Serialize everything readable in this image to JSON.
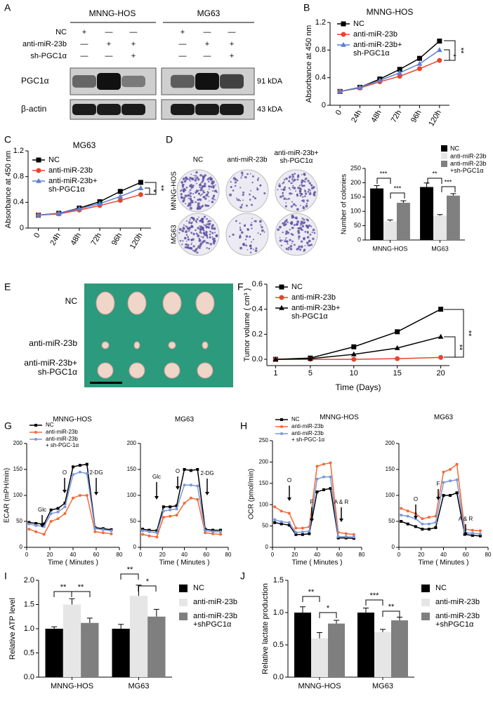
{
  "panel_labels": [
    "A",
    "B",
    "C",
    "D",
    "E",
    "F",
    "G",
    "H",
    "I",
    "J"
  ],
  "blot": {
    "groups": [
      "MNNG-HOS",
      "MG63"
    ],
    "rows": [
      "NC",
      "anti-miR-23b",
      "sh-PGC1α"
    ],
    "signs": [
      [
        "+",
        "—",
        "—",
        "+",
        "—",
        "—"
      ],
      [
        "—",
        "+",
        "+",
        "—",
        "+",
        "+"
      ],
      [
        "—",
        "—",
        "+",
        "—",
        "—",
        "+"
      ]
    ],
    "bands": [
      "PGC1α",
      "β-actin"
    ],
    "sizes": [
      "91 kDA",
      "43 kDA"
    ]
  },
  "colony": {
    "columns": [
      "NC",
      "anti-miR-23b",
      "anti-miR-23b+\nsh-PGC1α"
    ],
    "rows": [
      "MNNG-HOS",
      "MG63"
    ]
  },
  "tumor": {
    "rows": [
      "NC",
      "anti-miR-23b",
      "anti-miR-23b+\nsh-PGC1α"
    ]
  },
  "chart_data": [
    {
      "type": "line",
      "title": "MNNG-HOS",
      "y_label": "Absorbance at 450 nm",
      "categories": [
        "0",
        "24h",
        "48h",
        "72h",
        "96h",
        "120h"
      ],
      "ylim": [
        0,
        1.2
      ],
      "yticks": [
        0,
        0.4,
        0.8,
        1.2
      ],
      "series": [
        {
          "name": "NC",
          "color": "#000000",
          "marker": "square",
          "values": [
            0.2,
            0.26,
            0.38,
            0.52,
            0.68,
            0.93
          ]
        },
        {
          "name": "anti-miR-23b",
          "color": "#e8452c",
          "marker": "circle",
          "values": [
            0.2,
            0.25,
            0.34,
            0.42,
            0.53,
            0.65
          ]
        },
        {
          "name": "anti-miR-23b+\nsh-PGC1α",
          "color": "#5b7fd6",
          "marker": "triangle",
          "values": [
            0.2,
            0.26,
            0.36,
            0.47,
            0.6,
            0.8
          ]
        }
      ],
      "annotations": [
        "**",
        "*"
      ]
    },
    {
      "type": "line",
      "title": "MG63",
      "y_label": "Absorbance at 450 nm",
      "categories": [
        "0",
        "24h",
        "48h",
        "72h",
        "96h",
        "120h"
      ],
      "ylim": [
        0,
        1.2
      ],
      "yticks": [
        0,
        0.4,
        0.8,
        1.2
      ],
      "series": [
        {
          "name": "NC",
          "color": "#000000",
          "marker": "square",
          "values": [
            0.2,
            0.23,
            0.31,
            0.41,
            0.57,
            0.71
          ]
        },
        {
          "name": "anti-miR-23b",
          "color": "#e8452c",
          "marker": "circle",
          "values": [
            0.2,
            0.22,
            0.28,
            0.35,
            0.43,
            0.52
          ]
        },
        {
          "name": "anti-miR-23b+\nsh-PGC1α",
          "color": "#5b7fd6",
          "marker": "triangle",
          "values": [
            0.2,
            0.23,
            0.3,
            0.38,
            0.49,
            0.62
          ]
        }
      ],
      "annotations": [
        "**",
        "*"
      ]
    },
    {
      "type": "bar",
      "y_label": "Number of colonies",
      "categories": [
        "MNNG-HOS",
        "MG63"
      ],
      "ylim": [
        0,
        250
      ],
      "yticks": [
        0,
        50,
        100,
        150,
        200,
        250
      ],
      "series": [
        {
          "name": "NC",
          "color": "#000000",
          "values": [
            180,
            185
          ],
          "errors": [
            10,
            14
          ]
        },
        {
          "name": "anti-miR-23b",
          "color": "#e6e6e6",
          "values": [
            65,
            85
          ],
          "errors": [
            5,
            4
          ]
        },
        {
          "name": "anti-miR-23b\n+sh-PGC1α",
          "color": "#808080",
          "values": [
            130,
            155
          ],
          "errors": [
            7,
            7
          ]
        }
      ],
      "annotations": [
        "***",
        "***",
        "**",
        "***"
      ]
    },
    {
      "type": "line",
      "y_label": "Tumor volume ( cm³ )",
      "x_label": "Time (Days)",
      "x": [
        1,
        5,
        10,
        15,
        20
      ],
      "xlim": [
        0,
        21
      ],
      "xticks": [
        1,
        5,
        10,
        15,
        20
      ],
      "ylim": [
        -0.05,
        0.6
      ],
      "yticks": [
        {
          "value": 0,
          "label": "0.0"
        },
        0.2,
        0.4,
        0.6
      ],
      "series": [
        {
          "name": "NC",
          "color": "#000000",
          "marker": "square",
          "values": [
            0,
            0.01,
            0.1,
            0.22,
            0.4
          ]
        },
        {
          "name": "anti-miR-23b",
          "color": "#e8452c",
          "marker": "circle",
          "values": [
            0,
            0,
            0,
            0.005,
            0.015
          ]
        },
        {
          "name": "anti-miR-23b+\nsh-PGC1α",
          "color": "#000000",
          "marker": "triangle",
          "values": [
            0,
            0.005,
            0.04,
            0.09,
            0.18
          ]
        }
      ],
      "annotations": [
        "**",
        "**"
      ]
    },
    {
      "type": "line",
      "title": "MNNG-HOS",
      "y_label": "ECAR (mPH/min)",
      "x_label": "Time ( Minutes )",
      "x": [
        2,
        8,
        15,
        21,
        27,
        33,
        40,
        46,
        52,
        59,
        66,
        73
      ],
      "xlim": [
        0,
        80
      ],
      "xticks": [
        0,
        20,
        40,
        60,
        80
      ],
      "ylim": [
        0,
        200
      ],
      "yticks": [
        0,
        50,
        100,
        150,
        200
      ],
      "series": [
        {
          "name": "NC",
          "color": "#000000",
          "marker": "square",
          "values": [
            48,
            46,
            45,
            72,
            75,
            85,
            155,
            158,
            160,
            38,
            36,
            34
          ]
        },
        {
          "name": "anti-miR-23b",
          "color": "#f26b38",
          "marker": "circle",
          "values": [
            35,
            30,
            25,
            50,
            55,
            65,
            95,
            100,
            100,
            30,
            28,
            26
          ]
        },
        {
          "name": "anti-miR-23b\n+ sh-PGC-1α",
          "color": "#7b96dc",
          "marker": "circle",
          "values": [
            45,
            42,
            40,
            65,
            68,
            78,
            140,
            145,
            142,
            36,
            34,
            32
          ]
        }
      ],
      "annotations": [
        "Glc",
        "O",
        "2-DG"
      ]
    },
    {
      "type": "line",
      "title": "MG63",
      "x_label": "Time ( Minutes )",
      "x": [
        2,
        8,
        15,
        21,
        27,
        33,
        40,
        46,
        52,
        59,
        66,
        73
      ],
      "xlim": [
        0,
        80
      ],
      "xticks": [
        0,
        20,
        40,
        60,
        80
      ],
      "ylim": [
        0,
        200
      ],
      "yticks": [
        0,
        50,
        100,
        150,
        200
      ],
      "series": [
        {
          "color": "#000000",
          "marker": "square",
          "values": [
            35,
            33,
            32,
            78,
            78,
            80,
            150,
            148,
            150,
            35,
            33,
            33
          ]
        },
        {
          "color": "#f26b38",
          "marker": "circle",
          "values": [
            25,
            22,
            20,
            58,
            60,
            62,
            85,
            95,
            92,
            28,
            26,
            25
          ]
        },
        {
          "color": "#7b96dc",
          "marker": "circle",
          "values": [
            32,
            30,
            28,
            70,
            72,
            74,
            120,
            120,
            118,
            32,
            30,
            30
          ]
        }
      ],
      "annotations": [
        "Glc",
        "O",
        "2-DG"
      ]
    },
    {
      "type": "line",
      "title": "MNNG-HOS",
      "y_label": "OCR (pmol/min)",
      "x_label": "Time ( Minutes )",
      "x": [
        2,
        8,
        15,
        21,
        27,
        33,
        40,
        46,
        52,
        59,
        66,
        73
      ],
      "xlim": [
        0,
        80
      ],
      "xticks": [
        0,
        20,
        40,
        60,
        80
      ],
      "ylim": [
        0,
        250
      ],
      "yticks": [
        0,
        50,
        100,
        150,
        200,
        250
      ],
      "series": [
        {
          "name": "NC",
          "color": "#000000",
          "marker": "square",
          "values": [
            58,
            55,
            52,
            30,
            30,
            32,
            130,
            135,
            138,
            22,
            22,
            21
          ]
        },
        {
          "name": "anti-miR-23b",
          "color": "#f26b38",
          "marker": "circle",
          "values": [
            95,
            85,
            80,
            45,
            45,
            48,
            190,
            195,
            198,
            35,
            32,
            30
          ]
        },
        {
          "name": "anti-miR-23b\n+ sh-PGC-1α",
          "color": "#7b96dc",
          "marker": "circle",
          "values": [
            65,
            60,
            58,
            35,
            36,
            38,
            160,
            165,
            165,
            25,
            25,
            24
          ]
        }
      ],
      "annotations": [
        "O",
        "F",
        "A & R"
      ]
    },
    {
      "type": "line",
      "title": "MG63",
      "x_label": "Time ( Minutes )",
      "x": [
        2,
        8,
        15,
        21,
        27,
        33,
        40,
        46,
        52,
        59,
        66,
        73
      ],
      "xlim": [
        0,
        80
      ],
      "xticks": [
        0,
        20,
        40,
        60,
        80
      ],
      "ylim": [
        0,
        200
      ],
      "yticks": [
        0,
        50,
        100,
        150,
        200
      ],
      "series": [
        {
          "color": "#000000",
          "marker": "square",
          "values": [
            50,
            45,
            40,
            35,
            35,
            38,
            100,
            100,
            105,
            25,
            23,
            22
          ]
        },
        {
          "color": "#f26b38",
          "marker": "circle",
          "values": [
            75,
            70,
            65,
            55,
            58,
            60,
            145,
            150,
            160,
            35,
            33,
            32
          ]
        },
        {
          "color": "#7b96dc",
          "marker": "circle",
          "values": [
            62,
            60,
            55,
            45,
            45,
            48,
            125,
            128,
            130,
            28,
            27,
            26
          ]
        }
      ],
      "annotations": [
        "O",
        "F",
        "A & R"
      ]
    },
    {
      "type": "bar",
      "y_label": "Relative ATP level",
      "categories": [
        "MNNG-HOS",
        "MG63"
      ],
      "ylim": [
        0,
        2
      ],
      "yticks": [
        {
          "value": 0,
          "label": "0.0"
        },
        0.5,
        {
          "value": 1,
          "label": "1.0"
        },
        1.5,
        {
          "value": 2,
          "label": "2.0"
        }
      ],
      "series": [
        {
          "name": "NC",
          "color": "#000000",
          "values": [
            1.0,
            1.0
          ],
          "errors": [
            0.04,
            0.09
          ]
        },
        {
          "name": "anti-miR-23b",
          "color": "#e6e6e6",
          "values": [
            1.5,
            1.68
          ],
          "errors": [
            0.12,
            0.22
          ]
        },
        {
          "name": "anti-miR-23b\n+shPGC1α",
          "color": "#7f7f7f",
          "values": [
            1.12,
            1.25
          ],
          "errors": [
            0.1,
            0.15
          ]
        }
      ],
      "annotations": [
        "**",
        "**",
        "**",
        "*"
      ]
    },
    {
      "type": "bar",
      "y_label": "Relative lactate production",
      "categories": [
        "MNNG-HOS",
        "MG63"
      ],
      "ylim": [
        0,
        1.5
      ],
      "yticks": [
        {
          "value": 0,
          "label": "0.0"
        },
        0.5,
        {
          "value": 1,
          "label": "1.0"
        },
        1.5
      ],
      "series": [
        {
          "name": "NC",
          "color": "#000000",
          "values": [
            1.0,
            1.0
          ],
          "errors": [
            0.09,
            0.07
          ]
        },
        {
          "name": "anti-miR-23b",
          "color": "#e6e6e6",
          "values": [
            0.6,
            0.7
          ],
          "errors": [
            0.09,
            0.04
          ]
        },
        {
          "name": "anti-miR-23b\n+shPGC1α",
          "color": "#7f7f7f",
          "values": [
            0.83,
            0.88
          ],
          "errors": [
            0.05,
            0.05
          ]
        }
      ],
      "annotations": [
        "**",
        "*",
        "***",
        "**"
      ]
    }
  ]
}
